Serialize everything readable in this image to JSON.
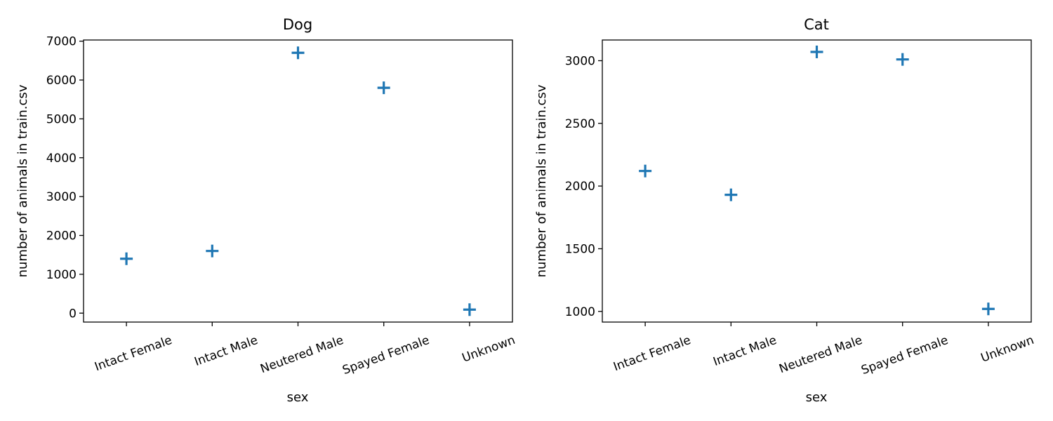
{
  "chart_data": [
    {
      "type": "scatter",
      "title": "Dog",
      "xlabel": "sex",
      "ylabel": "number of animals in train.csv",
      "categories": [
        "Intact Female",
        "Intact Male",
        "Neutered Male",
        "Spayed Female",
        "Unknown"
      ],
      "values": [
        1400,
        1600,
        6700,
        5800,
        90
      ],
      "ylim": [
        -230,
        7030
      ],
      "yticks": [
        0,
        1000,
        2000,
        3000,
        4000,
        5000,
        6000,
        7000
      ],
      "marker": "plus",
      "color": "#1f77b4",
      "grid": false
    },
    {
      "type": "scatter",
      "title": "Cat",
      "xlabel": "sex",
      "ylabel": "number of animals in train.csv",
      "categories": [
        "Intact Female",
        "Intact Male",
        "Neutered Male",
        "Spayed Female",
        "Unknown"
      ],
      "values": [
        2120,
        1930,
        3070,
        3010,
        1020
      ],
      "ylim": [
        915,
        3165
      ],
      "yticks": [
        1000,
        1500,
        2000,
        2500,
        3000
      ],
      "marker": "plus",
      "color": "#1f77b4",
      "grid": false
    }
  ]
}
